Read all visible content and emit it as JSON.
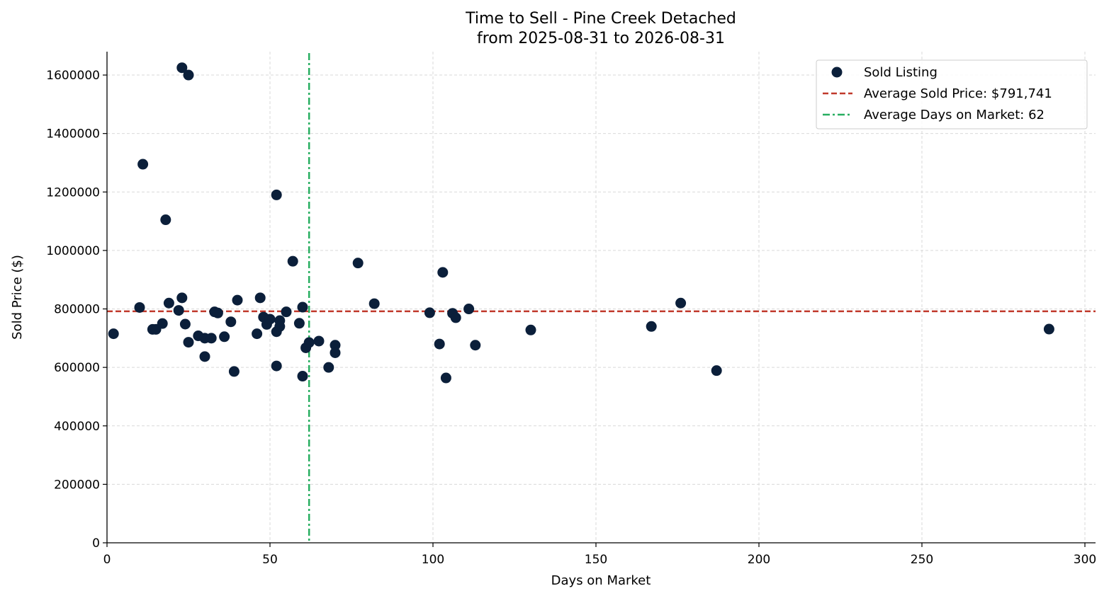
{
  "chart_data": {
    "type": "scatter",
    "title": "Time to Sell - Pine Creek Detached",
    "subtitle": "from 2025-08-31 to 2026-08-31",
    "xlabel": "Days on Market",
    "ylabel": "Sold Price ($)",
    "xlim": [
      0,
      303
    ],
    "ylim": [
      0,
      1680000
    ],
    "xticks": [
      "0",
      "50",
      "100",
      "150",
      "200",
      "250",
      "300"
    ],
    "yticks": [
      "0",
      "200000",
      "400000",
      "600000",
      "800000",
      "1000000",
      "1200000",
      "1400000",
      "1600000"
    ],
    "grid": true,
    "legend_position": "top-right",
    "colors": {
      "points": "#0b1f3a",
      "avg_price": "#c0392b",
      "avg_days": "#27ae60"
    },
    "series": [
      {
        "name": "Sold Listing",
        "points": [
          [
            2,
            715000
          ],
          [
            10,
            805000
          ],
          [
            11,
            1295000
          ],
          [
            14,
            730000
          ],
          [
            15,
            730000
          ],
          [
            17,
            750000
          ],
          [
            18,
            1105000
          ],
          [
            19,
            820000
          ],
          [
            22,
            795000
          ],
          [
            23,
            1625000
          ],
          [
            23,
            838000
          ],
          [
            24,
            748000
          ],
          [
            25,
            1600000
          ],
          [
            25,
            686000
          ],
          [
            28,
            708000
          ],
          [
            30,
            700000
          ],
          [
            30,
            637000
          ],
          [
            32,
            700000
          ],
          [
            33,
            790000
          ],
          [
            34,
            786000
          ],
          [
            36,
            705000
          ],
          [
            38,
            756000
          ],
          [
            39,
            586000
          ],
          [
            40,
            830000
          ],
          [
            46,
            715000
          ],
          [
            47,
            838000
          ],
          [
            48,
            772000
          ],
          [
            49,
            747000
          ],
          [
            50,
            765000
          ],
          [
            52,
            1190000
          ],
          [
            52,
            722000
          ],
          [
            52,
            605000
          ],
          [
            53,
            760000
          ],
          [
            53,
            740000
          ],
          [
            55,
            790000
          ],
          [
            57,
            963000
          ],
          [
            59,
            751000
          ],
          [
            60,
            806000
          ],
          [
            60,
            570000
          ],
          [
            61,
            667000
          ],
          [
            62,
            685000
          ],
          [
            65,
            690000
          ],
          [
            68,
            600000
          ],
          [
            70,
            676000
          ],
          [
            70,
            650000
          ],
          [
            77,
            957000
          ],
          [
            82,
            818000
          ],
          [
            99,
            787000
          ],
          [
            102,
            680000
          ],
          [
            103,
            925000
          ],
          [
            104,
            564000
          ],
          [
            106,
            785000
          ],
          [
            107,
            770000
          ],
          [
            111,
            800000
          ],
          [
            113,
            676000
          ],
          [
            130,
            728000
          ],
          [
            167,
            740000
          ],
          [
            176,
            820000
          ],
          [
            187,
            589000
          ],
          [
            289,
            731000
          ]
        ]
      }
    ],
    "reference_lines": [
      {
        "name": "Average Sold Price: $791,741",
        "orientation": "horizontal",
        "value": 791741
      },
      {
        "name": "Average Days on Market: 62",
        "orientation": "vertical",
        "value": 62
      }
    ]
  }
}
